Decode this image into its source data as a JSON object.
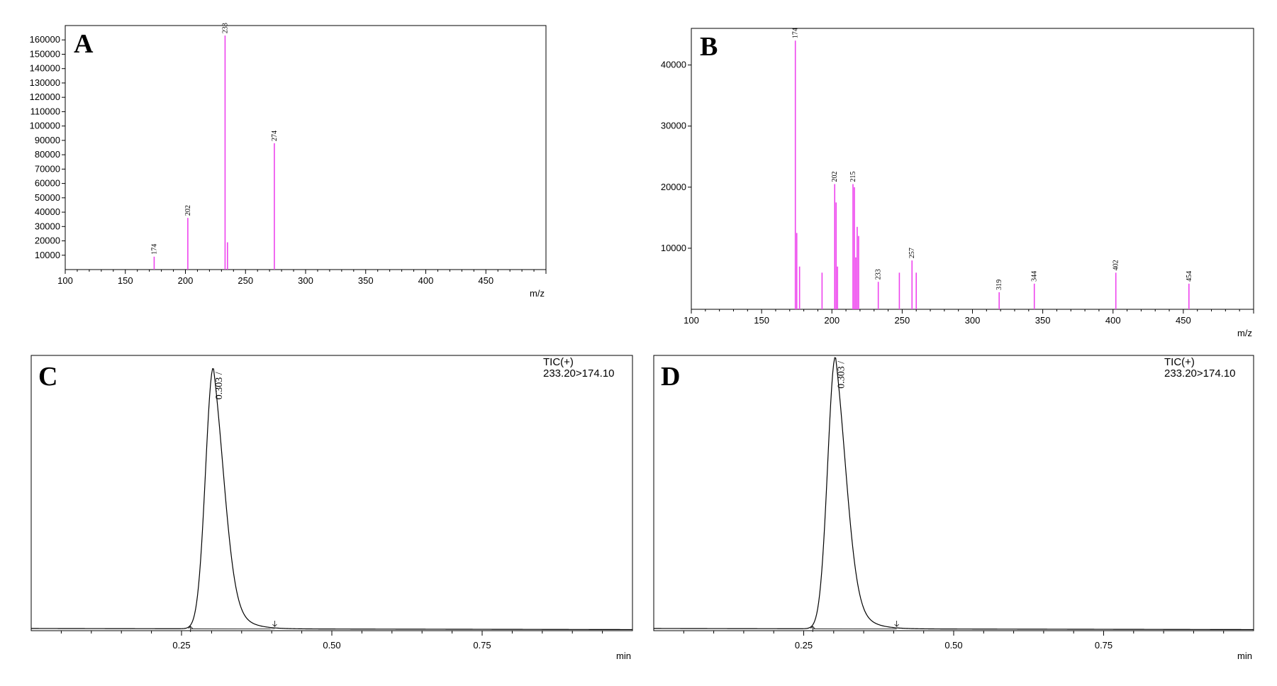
{
  "colors": {
    "peak": "#ee44ee",
    "trace": "#000000",
    "frame": "#000000"
  },
  "chart_data": [
    {
      "panel": "A",
      "type": "bar",
      "xlabel": "m/z",
      "xlim": [
        100,
        500
      ],
      "ylim": [
        0,
        170000
      ],
      "xticks": [
        100,
        150,
        200,
        250,
        300,
        350,
        400,
        450
      ],
      "yticks": [
        10000,
        20000,
        30000,
        40000,
        50000,
        60000,
        70000,
        80000,
        90000,
        100000,
        110000,
        120000,
        130000,
        140000,
        150000,
        160000
      ],
      "peaks": [
        {
          "x": 174,
          "y": 9000,
          "label": "174"
        },
        {
          "x": 202,
          "y": 36000,
          "label": "202"
        },
        {
          "x": 233,
          "y": 163000,
          "label": "233"
        },
        {
          "x": 235,
          "y": 19000,
          "label": ""
        },
        {
          "x": 274,
          "y": 88000,
          "label": "274"
        }
      ]
    },
    {
      "panel": "B",
      "type": "bar",
      "xlabel": "m/z",
      "xlim": [
        100,
        500
      ],
      "ylim": [
        0,
        46000
      ],
      "xticks": [
        100,
        150,
        200,
        250,
        300,
        350,
        400,
        450
      ],
      "yticks": [
        10000,
        20000,
        30000,
        40000
      ],
      "peaks": [
        {
          "x": 174,
          "y": 44000,
          "label": "174"
        },
        {
          "x": 175,
          "y": 12500,
          "label": ""
        },
        {
          "x": 177,
          "y": 7000,
          "label": ""
        },
        {
          "x": 193,
          "y": 6000,
          "label": ""
        },
        {
          "x": 202,
          "y": 20500,
          "label": "202"
        },
        {
          "x": 203,
          "y": 17500,
          "label": ""
        },
        {
          "x": 204,
          "y": 7000,
          "label": ""
        },
        {
          "x": 215,
          "y": 20500,
          "label": "215"
        },
        {
          "x": 216,
          "y": 20000,
          "label": ""
        },
        {
          "x": 217,
          "y": 8500,
          "label": ""
        },
        {
          "x": 218,
          "y": 13500,
          "label": ""
        },
        {
          "x": 219,
          "y": 12000,
          "label": ""
        },
        {
          "x": 233,
          "y": 4500,
          "label": "233"
        },
        {
          "x": 248,
          "y": 6000,
          "label": ""
        },
        {
          "x": 257,
          "y": 8000,
          "label": "257"
        },
        {
          "x": 260,
          "y": 6000,
          "label": ""
        },
        {
          "x": 319,
          "y": 2800,
          "label": "319"
        },
        {
          "x": 344,
          "y": 4200,
          "label": "344"
        },
        {
          "x": 402,
          "y": 6000,
          "label": "402"
        },
        {
          "x": 454,
          "y": 4200,
          "label": "454"
        }
      ]
    },
    {
      "panel": "C",
      "type": "line",
      "xlabel": "min",
      "xlim": [
        0,
        1.0
      ],
      "ylim": [
        0,
        1.0
      ],
      "xticks": [
        "0.25",
        "0.50",
        "0.75"
      ],
      "trace_label": "TIC(+)",
      "transition": "233.20>174.10",
      "peak_rt": "0.303",
      "peak": {
        "rt": 0.303,
        "height": 0.95,
        "start": 0.265,
        "end": 0.405
      }
    },
    {
      "panel": "D",
      "type": "line",
      "xlabel": "min",
      "xlim": [
        0,
        1.0
      ],
      "ylim": [
        0,
        1.0
      ],
      "xticks": [
        "0.25",
        "0.50",
        "0.75"
      ],
      "trace_label": "TIC(+)",
      "transition": "233.20>174.10",
      "peak_rt": "0.303",
      "peak": {
        "rt": 0.303,
        "height": 0.99,
        "start": 0.265,
        "end": 0.405
      }
    }
  ]
}
